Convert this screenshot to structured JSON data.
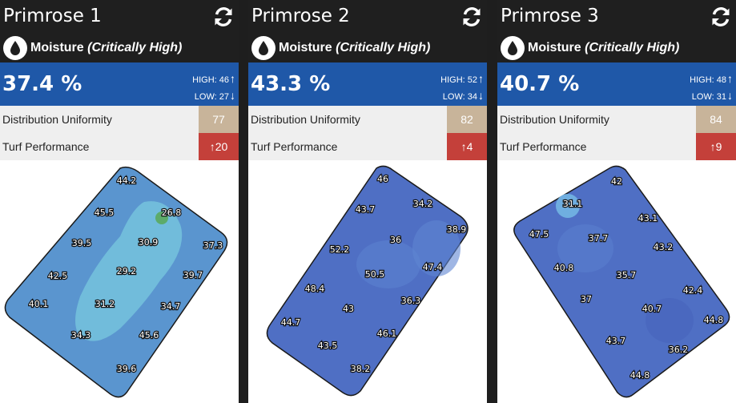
{
  "units": "%",
  "colors": {
    "header_bg": "#1f1f1f",
    "value_bg": "#1f58a8",
    "uniform_badge": "#c8b49a",
    "turf_badge": "#c4403a"
  },
  "cards": [
    {
      "title": "Primrose 1",
      "moisture_label": "Moisture",
      "moisture_status": "(Critically High)",
      "value": "37.4 %",
      "high": "HIGH: 46",
      "low": "LOW: 27",
      "uniformity_label": "Distribution Uniformity",
      "uniformity_value": "77",
      "turf_label": "Turf Performance",
      "turf_value": "20",
      "turf_trend": "up",
      "map_points": [
        "44.2",
        "45.5",
        "26.8",
        "39.5",
        "30.9",
        "37.3",
        "42.5",
        "29.2",
        "39.7",
        "40.1",
        "31.2",
        "34.7",
        "34.3",
        "45.6",
        "39.6"
      ]
    },
    {
      "title": "Primrose 2",
      "moisture_label": "Moisture",
      "moisture_status": "(Critically High)",
      "value": "43.3 %",
      "high": "HIGH: 52",
      "low": "LOW: 34",
      "uniformity_label": "Distribution Uniformity",
      "uniformity_value": "82",
      "turf_label": "Turf Performance",
      "turf_value": "4",
      "turf_trend": "up",
      "map_points": [
        "46",
        "34.2",
        "43.7",
        "38.9",
        "36",
        "52.2",
        "47.4",
        "50.5",
        "48.4",
        "36.3",
        "43",
        "44.7",
        "46.1",
        "43.5",
        "38.2"
      ]
    },
    {
      "title": "Primrose 3",
      "moisture_label": "Moisture",
      "moisture_status": "(Critically High)",
      "value": "40.7 %",
      "high": "HIGH: 48",
      "low": "LOW: 31",
      "uniformity_label": "Distribution Uniformity",
      "uniformity_value": "84",
      "turf_label": "Turf Performance",
      "turf_value": "9",
      "turf_trend": "up",
      "map_points": [
        "42",
        "31.1",
        "43.1",
        "47.5",
        "37.7",
        "43.2",
        "40.8",
        "35.7",
        "42.4",
        "37",
        "40.7",
        "44.8",
        "43.7",
        "36.2",
        "44.8"
      ]
    }
  ]
}
